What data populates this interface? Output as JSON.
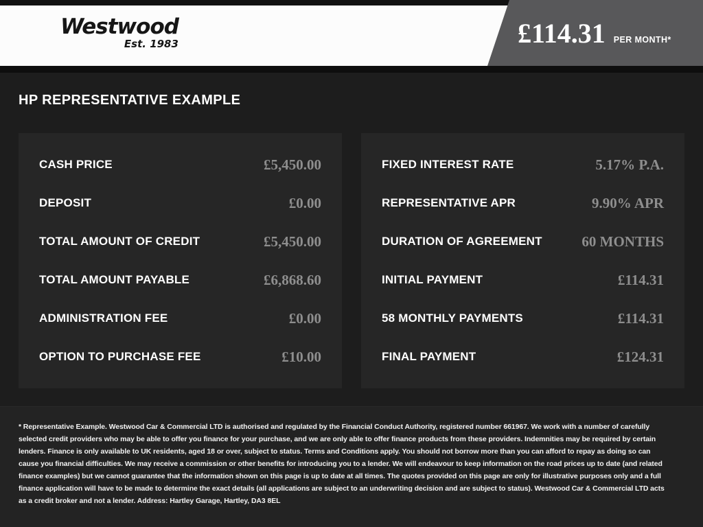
{
  "header": {
    "logo": {
      "name": "Westwood",
      "tagline": "Est. 1983"
    },
    "price": {
      "amount": "£114.31",
      "period": "PER MONTH*"
    }
  },
  "main": {
    "title": "HP REPRESENTATIVE EXAMPLE",
    "left_panel": {
      "rows": [
        {
          "label": "CASH PRICE",
          "value": "£5,450.00"
        },
        {
          "label": "DEPOSIT",
          "value": "£0.00"
        },
        {
          "label": "TOTAL AMOUNT OF CREDIT",
          "value": "£5,450.00"
        },
        {
          "label": "TOTAL AMOUNT PAYABLE",
          "value": "£6,868.60"
        },
        {
          "label": "ADMINISTRATION FEE",
          "value": "£0.00"
        },
        {
          "label": "OPTION TO PURCHASE FEE",
          "value": "£10.00"
        }
      ]
    },
    "right_panel": {
      "rows": [
        {
          "label": "FIXED INTEREST RATE",
          "value": "5.17% P.A."
        },
        {
          "label": "REPRESENTATIVE APR",
          "value": "9.90% APR"
        },
        {
          "label": "DURATION OF AGREEMENT",
          "value": "60 MONTHS"
        },
        {
          "label": "INITIAL PAYMENT",
          "value": "£114.31"
        },
        {
          "label": "58 MONTHLY PAYMENTS",
          "value": "£114.31"
        },
        {
          "label": "FINAL PAYMENT",
          "value": "£124.31"
        }
      ]
    }
  },
  "footer": {
    "disclaimer": "* Representative Example. Westwood Car & Commercial LTD is authorised and regulated by the Financial Conduct Authority, registered number 661967. We work with a number of carefully selected credit providers who may be able to offer you finance for your purchase, and we are only able to offer finance products from these providers. Indemnities may be required by certain lenders. Finance is only available to UK residents, aged 18 or over, subject to status. Terms and Conditions apply. You should not borrow more than you can afford to repay as doing so can cause you financial difficulties. We may receive a commission or other benefits for introducing you to a lender. We will endeavour to keep information on the road prices up to date (and related finance examples) but we cannot guarantee that the information shown on this page is up to date at all times. The quotes provided on this page are only for illustrative purposes only and a full finance application will have to be made to determine the exact details (all applications are subject to an underwriting decision and are subject to status). Westwood Car & Commercial LTD acts as a credit broker and not a lender. Address: Hartley Garage, Hartley, DA3 8EL"
  },
  "colors": {
    "accent-gray": "#58585a",
    "page-bg": "#1d1d1d",
    "panel-bg": "#262626",
    "footer-bg": "#232323",
    "value-color": "#8e8e8e",
    "header-bg": "#fcfcfc",
    "top-strip": "#121212"
  }
}
